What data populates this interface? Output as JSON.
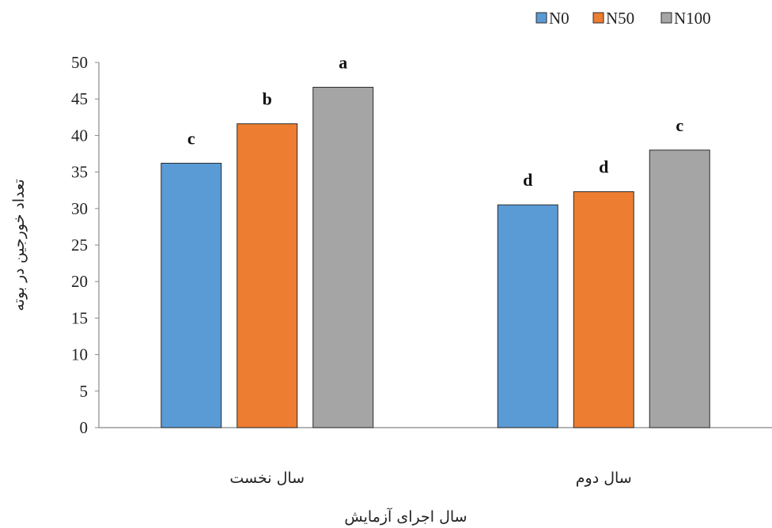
{
  "chart_data": {
    "type": "bar",
    "categories": [
      "سال نخست",
      "سال دوم"
    ],
    "series": [
      {
        "name": "N0",
        "color": "#5B9BD5",
        "values": [
          36.2,
          30.5
        ],
        "labels": [
          "c",
          "d"
        ]
      },
      {
        "name": "N50",
        "color": "#ED7D31",
        "values": [
          41.6,
          32.3
        ],
        "labels": [
          "b",
          "d"
        ]
      },
      {
        "name": "N100",
        "color": "#A5A5A5",
        "values": [
          46.6,
          38.0
        ],
        "labels": [
          "a",
          "c"
        ]
      }
    ],
    "xlabel": "سال اجرای آزمایش",
    "ylabel": "تعداد خورجین در بوته",
    "ylim": [
      0,
      50
    ],
    "yticks": [
      0,
      5,
      10,
      15,
      20,
      25,
      30,
      35,
      40,
      45,
      50
    ],
    "grid": false,
    "legend": "top-right"
  }
}
